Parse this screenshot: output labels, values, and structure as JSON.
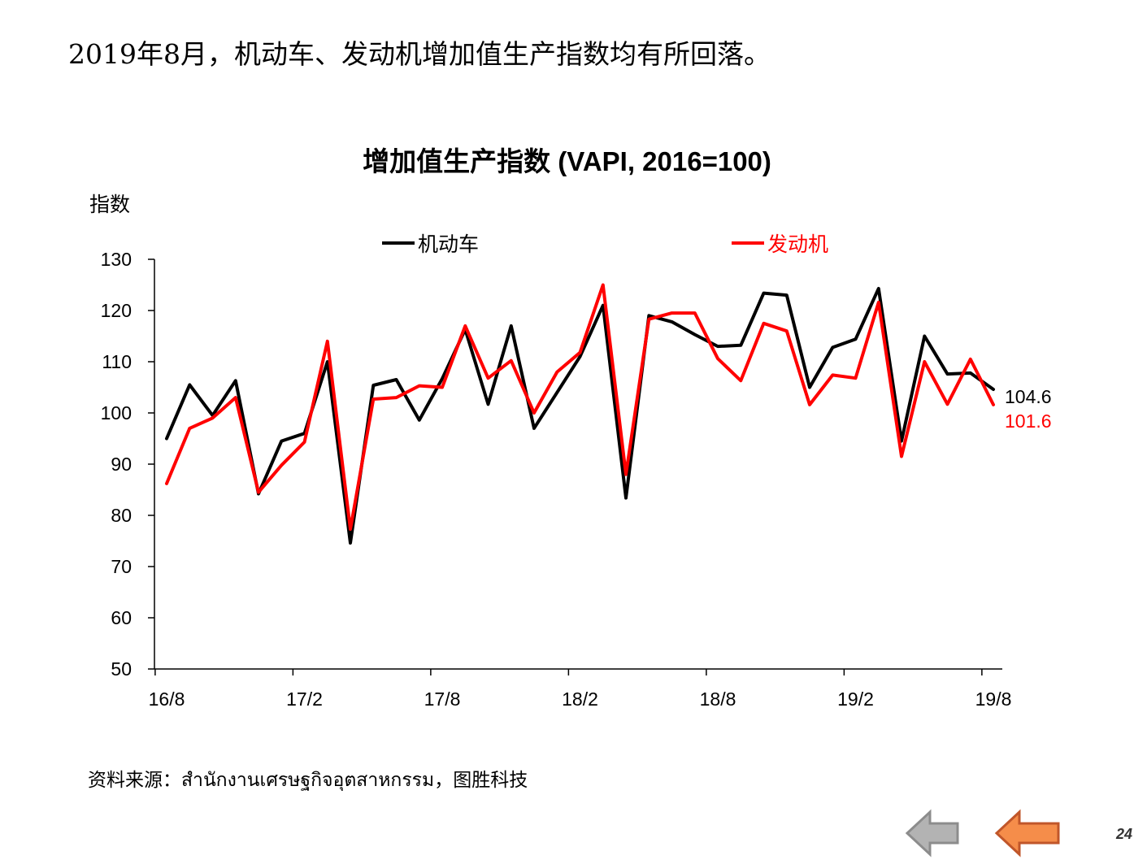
{
  "headline": "2019年8月，机动车、发动机增加值生产指数均有所回落。",
  "source": "资料来源：สำนักงานเศรษฐกิจอุตสาหกรรม，图胜科技",
  "page_number": "24",
  "nav": {
    "prev_icon": "left-arrow-gray",
    "next_icon": "left-arrow-orange"
  },
  "chart_data": {
    "type": "line",
    "title": "增加值生产指数 (VAPI, 2016=100)",
    "ylabel": "指数",
    "ylim": [
      50,
      130
    ],
    "yticks": [
      50,
      60,
      70,
      80,
      90,
      100,
      110,
      120,
      130
    ],
    "grid": false,
    "legend_position": "top",
    "x": [
      "16/8",
      "16/9",
      "16/10",
      "16/11",
      "16/12",
      "17/1",
      "17/2",
      "17/3",
      "17/4",
      "17/5",
      "17/6",
      "17/7",
      "17/8",
      "17/9",
      "17/10",
      "17/11",
      "17/12",
      "18/1",
      "18/2",
      "18/3",
      "18/4",
      "18/5",
      "18/6",
      "18/7",
      "18/8",
      "18/9",
      "18/10",
      "18/11",
      "18/12",
      "19/1",
      "19/2",
      "19/3",
      "19/4",
      "19/5",
      "19/6",
      "19/7",
      "19/8"
    ],
    "xtick_labels": [
      "16/8",
      "17/2",
      "17/8",
      "18/2",
      "18/8",
      "19/2",
      "19/8"
    ],
    "series": [
      {
        "name": "机动车",
        "color": "#000000",
        "end_label": "104.6",
        "values": [
          95.0,
          105.5,
          99.5,
          106.3,
          84.2,
          94.5,
          96.0,
          110.0,
          74.6,
          105.4,
          106.5,
          98.6,
          106.7,
          116.3,
          101.7,
          117.0,
          97.0,
          104.0,
          111.0,
          121.0,
          83.4,
          119.0,
          117.8,
          115.3,
          113.0,
          113.2,
          123.4,
          123.0,
          105.0,
          112.8,
          114.4,
          124.3,
          94.5,
          115.0,
          107.6,
          107.8,
          104.6
        ]
      },
      {
        "name": "发动机",
        "color": "#ff0000",
        "end_label": "101.6",
        "values": [
          86.2,
          97.0,
          99.0,
          103.0,
          84.5,
          89.8,
          94.3,
          114.0,
          77.3,
          102.7,
          103.0,
          105.3,
          105.0,
          117.0,
          106.8,
          110.2,
          100.0,
          108.0,
          111.8,
          125.0,
          88.0,
          118.3,
          119.5,
          119.5,
          110.6,
          106.3,
          117.5,
          116.0,
          101.6,
          107.4,
          106.8,
          121.6,
          91.5,
          110.0,
          101.7,
          110.5,
          101.6
        ]
      }
    ]
  }
}
